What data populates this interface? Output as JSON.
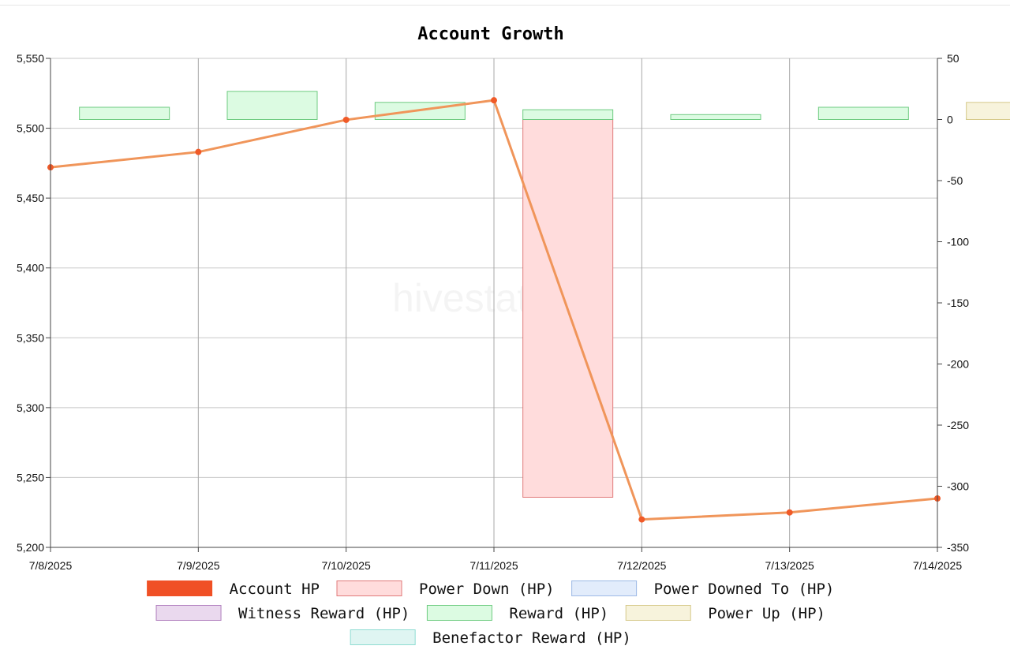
{
  "chart_data": {
    "type": "bar",
    "title": "Account Growth",
    "watermark": "hivestats.io",
    "categories": [
      "7/8/2025",
      "7/9/2025",
      "7/10/2025",
      "7/11/2025",
      "7/12/2025",
      "7/13/2025",
      "7/14/2025"
    ],
    "y_left": {
      "ylim": [
        5200,
        5550
      ],
      "ticks": [
        "5,200",
        "5,250",
        "5,300",
        "5,350",
        "5,400",
        "5,450",
        "5,500",
        "5,550"
      ]
    },
    "y_right": {
      "ylim": [
        -350,
        50
      ],
      "ticks": [
        "-350",
        "-300",
        "-250",
        "-200",
        "-150",
        "-100",
        "-50",
        "0",
        "50"
      ]
    },
    "grid": true,
    "legend_position": "bottom",
    "series": [
      {
        "name": "Account HP",
        "kind": "line",
        "axis": "left",
        "color": "#f0955a",
        "swatch_fill": "#f05025",
        "swatch_stroke": "#f05025",
        "point_color": "#f05a28",
        "values": [
          5472,
          5483,
          5506,
          5520,
          5220,
          5225,
          5235
        ]
      },
      {
        "name": "Power Down (HP)",
        "kind": "bar",
        "axis": "right",
        "fill": "#ffdcdc",
        "stroke": "#e07a7a",
        "values": [
          0,
          0,
          0,
          -309,
          0,
          0,
          0
        ]
      },
      {
        "name": "Power Downed To (HP)",
        "kind": "bar",
        "axis": "right",
        "fill": "#e2ecfb",
        "stroke": "#9db9e6",
        "values": [
          0,
          0,
          0,
          0,
          0,
          0,
          0
        ]
      },
      {
        "name": "Witness Reward (HP)",
        "kind": "bar",
        "axis": "right",
        "fill": "#ead9ee",
        "stroke": "#b07fbe",
        "values": [
          0,
          0,
          0,
          0,
          0,
          0,
          0
        ]
      },
      {
        "name": "Reward (HP)",
        "kind": "bar",
        "axis": "right",
        "fill": "#dcfbe2",
        "stroke": "#6ecb80",
        "values": [
          10,
          23,
          14,
          8,
          4,
          10,
          1
        ]
      },
      {
        "name": "Power Up (HP)",
        "kind": "bar",
        "axis": "right",
        "fill": "#f7f3dc",
        "stroke": "#d6c98a",
        "values": [
          0,
          0,
          0,
          0,
          0,
          0,
          14
        ]
      },
      {
        "name": "Benefactor Reward (HP)",
        "kind": "bar",
        "axis": "right",
        "fill": "#dff5f2",
        "stroke": "#8fdcd2",
        "values": [
          0,
          0,
          0,
          0,
          0,
          0,
          0
        ]
      }
    ]
  }
}
